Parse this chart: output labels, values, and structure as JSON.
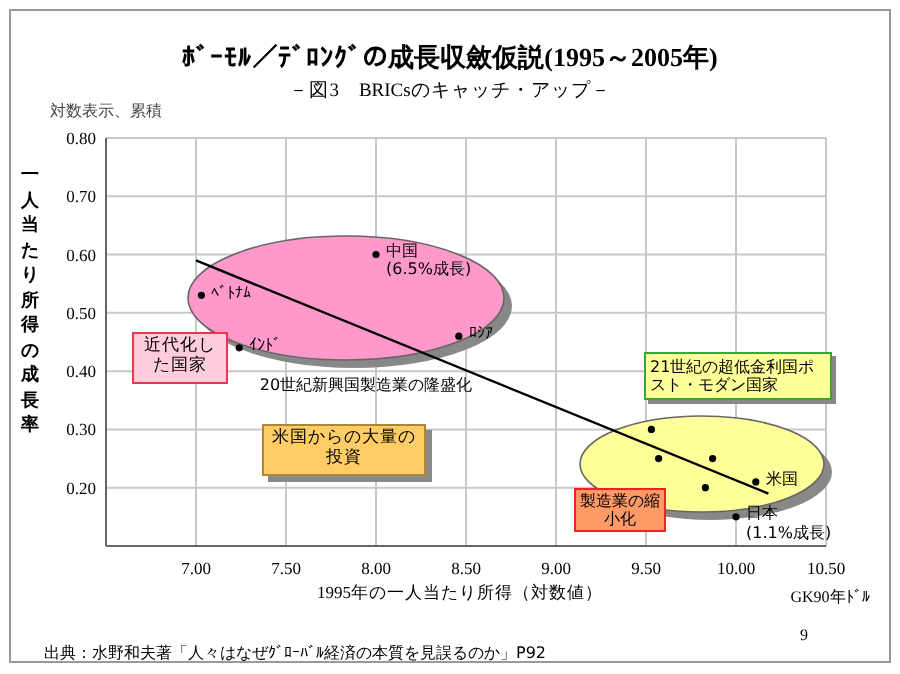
{
  "chart_data": {
    "type": "scatter",
    "title": "ﾎﾞｰﾓﾙ／ﾃﾞﾛﾝｸﾞの成長収斂仮説(1995～2005年)",
    "subtitle": "－図3　BRICsのキャッチ・アップ－",
    "xlabel": "1995年の一人当たり所得（対数値）",
    "ylabel": "一人当たり所得の成長率",
    "x": [
      8.0,
      7.03,
      7.24,
      8.46,
      9.53,
      9.57,
      9.87,
      9.83,
      10.11,
      10.0
    ],
    "series": [
      {
        "marker": "circle",
        "color": "#000000",
        "values": [
          0.6,
          0.53,
          0.44,
          0.46,
          0.3,
          0.25,
          0.25,
          0.2,
          0.21,
          0.15
        ]
      },
      {
        "type": "line",
        "color": "#000000",
        "x": [
          7.0,
          10.18
        ],
        "values": [
          0.59,
          0.19
        ]
      }
    ],
    "xlim": [
      6.5,
      10.5
    ],
    "ylim": [
      0.1,
      0.8
    ],
    "xticks": [
      {
        "value": 6.5,
        "label": null
      },
      {
        "value": 7.0,
        "label": "7.00"
      },
      {
        "value": 7.5,
        "label": "7.50"
      },
      {
        "value": 8.0,
        "label": "8.00"
      },
      {
        "value": 8.5,
        "label": "8.50"
      },
      {
        "value": 9.0,
        "label": "9.00"
      },
      {
        "value": 9.5,
        "label": "9.50"
      },
      {
        "value": 10.0,
        "label": "10.00"
      },
      {
        "value": 10.5,
        "label": "10.50"
      }
    ],
    "yticks": [
      {
        "value": 0.1,
        "label": null
      },
      {
        "value": 0.2,
        "label": "0.20"
      },
      {
        "value": 0.3,
        "label": "0.30"
      },
      {
        "value": 0.4,
        "label": "0.40"
      },
      {
        "value": 0.5,
        "label": "0.50"
      },
      {
        "value": 0.6,
        "label": "0.60"
      },
      {
        "value": 0.7,
        "label": "0.70"
      },
      {
        "value": 0.8,
        "label": "0.80"
      }
    ],
    "grid": true,
    "legend": false,
    "annotations": [
      "対数表示、累積",
      "20世紀新興国製造業の隆盛化",
      "近代化した国家",
      "米国からの大量の投資",
      "21世紀の超低金利国ポスト・モダン国家",
      "製造業の縮小化",
      "GK90年ﾄﾞﾙ",
      "9",
      "出典：水野和夫著「人々はなぜｸﾞﾛｰﾊﾞﾙ経済の本質を見誤るのか」P92",
      {
        "text": "中国 (6.5%成長)",
        "x": 8.0,
        "y": 0.6
      },
      {
        "text": "ﾍﾞﾄﾅﾑ",
        "x": 7.03,
        "y": 0.53
      },
      {
        "text": "ｲﾝﾄﾞ",
        "x": 7.24,
        "y": 0.44
      },
      {
        "text": "ﾛｼｱ",
        "x": 8.46,
        "y": 0.46
      },
      {
        "text": "米国",
        "x": 10.11,
        "y": 0.21
      },
      {
        "text": "日本 (1.1%成長)",
        "x": 10.0,
        "y": 0.15
      }
    ]
  }
}
